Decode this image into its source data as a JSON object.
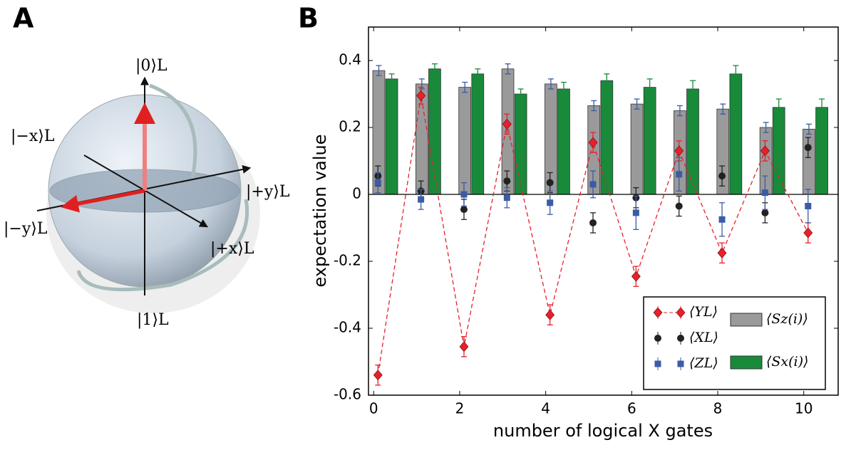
{
  "figure_labels": [
    "A",
    "B"
  ],
  "bloch_sphere": {
    "state_labels": [
      "|0⟩L",
      "|−x⟩L",
      "|+y⟩L",
      "|−y⟩L",
      "|+x⟩L",
      "|1⟩L"
    ]
  },
  "chart_data": {
    "type": "bar",
    "x_label": "number of logical X gates",
    "y_label": "expectation value",
    "x": [
      0,
      1,
      2,
      3,
      4,
      5,
      6,
      7,
      8,
      9,
      10
    ],
    "xlim": [
      -0.12,
      10.8
    ],
    "xticks": [
      0,
      2,
      4,
      6,
      8,
      10
    ],
    "ylim": [
      -0.6,
      0.5
    ],
    "yticks": [
      -0.6,
      -0.4,
      -0.2,
      0,
      0.2,
      0.4
    ],
    "legend": "lower right",
    "series": [
      {
        "name": "⟨YL⟩",
        "type": "errorbar",
        "marker": "diamond",
        "linestyle": "dashed",
        "color": "#e8202a",
        "values": [
          -0.54,
          0.295,
          -0.455,
          0.21,
          -0.36,
          0.155,
          -0.245,
          0.13,
          -0.175,
          0.13,
          -0.115
        ],
        "errors": [
          0.03,
          0.025,
          0.03,
          0.03,
          0.03,
          0.03,
          0.03,
          0.03,
          0.03,
          0.03,
          0.03
        ]
      },
      {
        "name": "⟨XL⟩",
        "type": "errorbar",
        "marker": "circle",
        "color": "#222222",
        "values": [
          0.055,
          0.01,
          -0.045,
          0.04,
          0.035,
          -0.085,
          -0.01,
          -0.035,
          0.055,
          -0.055,
          0.14
        ],
        "errors": [
          0.03,
          0.03,
          0.03,
          0.03,
          0.03,
          0.03,
          0.03,
          0.03,
          0.03,
          0.03,
          0.03
        ]
      },
      {
        "name": "⟨ZL⟩",
        "type": "errorbar",
        "marker": "square",
        "color": "#3b5ba5",
        "values": [
          0.035,
          -0.015,
          0.0,
          -0.01,
          -0.025,
          0.03,
          -0.055,
          0.06,
          -0.075,
          0.005,
          -0.035
        ],
        "errors": [
          0.03,
          0.03,
          0.035,
          0.03,
          0.035,
          0.04,
          0.05,
          0.05,
          0.05,
          0.05,
          0.05
        ]
      },
      {
        "name": "⟨Sz(i)⟩",
        "type": "bar",
        "color": "#9a9a9a",
        "error_color": "#3b5ba5",
        "values": [
          0.37,
          0.33,
          0.32,
          0.375,
          0.33,
          0.265,
          0.27,
          0.25,
          0.255,
          0.2,
          0.195
        ],
        "errors": [
          0.015,
          0.015,
          0.015,
          0.015,
          0.015,
          0.015,
          0.015,
          0.015,
          0.015,
          0.015,
          0.015
        ]
      },
      {
        "name": "⟨Sx(i)⟩",
        "type": "bar",
        "color": "#188a3a",
        "error_color": "#188a3a",
        "values": [
          0.345,
          0.375,
          0.36,
          0.3,
          0.315,
          0.34,
          0.32,
          0.315,
          0.36,
          0.26,
          0.26
        ],
        "errors": [
          0.015,
          0.015,
          0.015,
          0.015,
          0.02,
          0.02,
          0.025,
          0.025,
          0.025,
          0.025,
          0.025
        ]
      }
    ]
  }
}
